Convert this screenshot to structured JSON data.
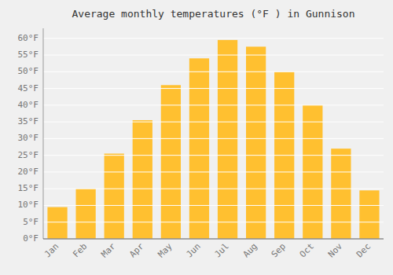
{
  "chart_data": {
    "type": "bar",
    "title": "Average monthly temperatures (°F ) in Gunnison",
    "categories": [
      "Jan",
      "Feb",
      "Mar",
      "Apr",
      "May",
      "Jun",
      "Jul",
      "Aug",
      "Sep",
      "Oct",
      "Nov",
      "Dec"
    ],
    "values": [
      9.5,
      15,
      25.5,
      35.5,
      46,
      54,
      59.5,
      57.5,
      50,
      40,
      27,
      14.5
    ],
    "color": "#FFC030",
    "ylim": [
      0,
      63
    ],
    "yticks": [
      {
        "value": 0,
        "label": "0°F"
      },
      {
        "value": 5,
        "label": "5°F"
      },
      {
        "value": 10,
        "label": "10°F"
      },
      {
        "value": 15,
        "label": "15°F"
      },
      {
        "value": 20,
        "label": "20°F"
      },
      {
        "value": 25,
        "label": "25°F"
      },
      {
        "value": 30,
        "label": "30°F"
      },
      {
        "value": 35,
        "label": "35°F"
      },
      {
        "value": 40,
        "label": "40°F"
      },
      {
        "value": 45,
        "label": "45°F"
      },
      {
        "value": 50,
        "label": "50°F"
      },
      {
        "value": 55,
        "label": "55°F"
      },
      {
        "value": 60,
        "label": "60°F"
      }
    ],
    "grid": true
  }
}
